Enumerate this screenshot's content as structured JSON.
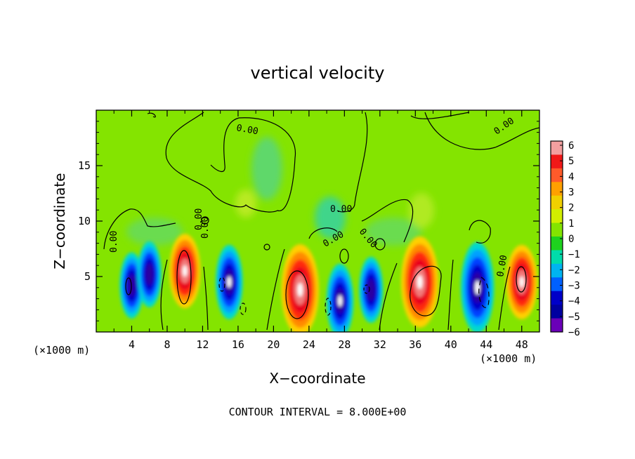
{
  "chart_data": {
    "type": "heatmap",
    "title": "vertical velocity",
    "xlabel": "X−coordinate",
    "ylabel": "Z−coordinate",
    "xunit_left": "(×1000 m)",
    "xunit_right": "(×1000 m)",
    "xlim": [
      0,
      50
    ],
    "ylim": [
      0,
      20
    ],
    "x_ticks": [
      "4",
      "8",
      "12",
      "16",
      "20",
      "24",
      "28",
      "32",
      "36",
      "40",
      "44",
      "48"
    ],
    "y_ticks": [
      "5",
      "10",
      "15"
    ],
    "colorbar": {
      "levels": [
        "6",
        "5",
        "4",
        "3",
        "2",
        "1",
        "0",
        "−1",
        "−2",
        "−3",
        "−4",
        "−5",
        "−6"
      ],
      "colors": [
        "#f2a0a0",
        "#f01818",
        "#ff5a2a",
        "#ffa000",
        "#f0d000",
        "#d2ee00",
        "#84e400",
        "#1ed21e",
        "#00dcaa",
        "#00b4f0",
        "#0060ff",
        "#0000c8",
        "#0000a0",
        "#6a00b8"
      ]
    },
    "background_color": "#84e400",
    "cells": [
      {
        "x": 4,
        "z": 4.2,
        "w": -5.5
      },
      {
        "x": 6,
        "z": 5.2,
        "w": -5.5
      },
      {
        "x": 10,
        "z": 5.5,
        "w": 6.5
      },
      {
        "x": 15,
        "z": 4.5,
        "w": -6.5
      },
      {
        "x": 23,
        "z": 3.8,
        "w": 8.5
      },
      {
        "x": 27.5,
        "z": 2.8,
        "w": -6.5
      },
      {
        "x": 31,
        "z": 3.8,
        "w": -5.5
      },
      {
        "x": 36.5,
        "z": 4.5,
        "w": 8.5
      },
      {
        "x": 43,
        "z": 4.0,
        "w": -8.5
      },
      {
        "x": 48,
        "z": 4.5,
        "w": 6.5
      }
    ],
    "contour_labels": [
      "0.00",
      "0.00",
      "0.00",
      "0.00",
      "0.00",
      "0.00",
      "0.00",
      "0.00",
      "0.00"
    ],
    "contour_interval_text": "CONTOUR INTERVAL = 8.000E+00"
  }
}
